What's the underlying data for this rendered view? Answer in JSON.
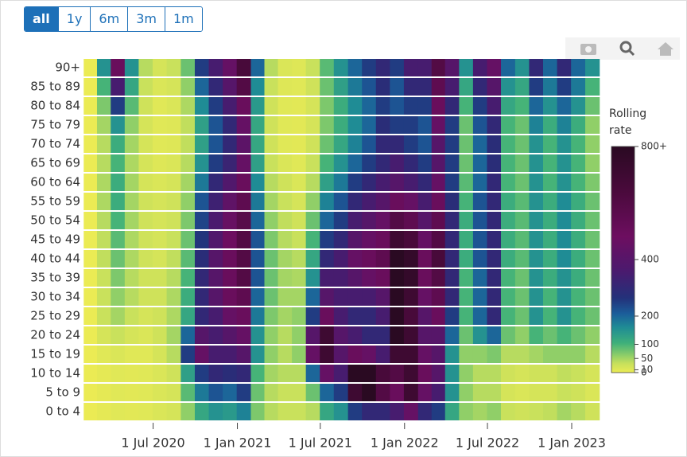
{
  "range_buttons": [
    "all",
    "1y",
    "6m",
    "3m",
    "1m"
  ],
  "chart_data": {
    "type": "heatmap",
    "x": [
      "2020-02-15",
      "2020-03-15",
      "2020-04-15",
      "2020-05-15",
      "2020-06-15",
      "2020-07-15",
      "2020-08-15",
      "2020-09-15",
      "2020-10-15",
      "2020-11-15",
      "2020-12-15",
      "2021-01-15",
      "2021-02-15",
      "2021-03-15",
      "2021-04-15",
      "2021-05-15",
      "2021-06-15",
      "2021-07-15",
      "2021-08-15",
      "2021-09-15",
      "2021-10-15",
      "2021-11-15",
      "2021-12-15",
      "2022-01-15",
      "2022-02-15",
      "2022-03-15",
      "2022-04-15",
      "2022-05-15",
      "2022-06-15",
      "2022-07-15",
      "2022-08-15",
      "2022-09-15",
      "2022-10-15",
      "2022-11-15",
      "2022-12-15",
      "2023-01-15",
      "2023-02-15"
    ],
    "y": [
      "0 to 4",
      "5 to 9",
      "10 to 14",
      "15 to 19",
      "20 to 24",
      "25 to 29",
      "30 to 34",
      "35 to 39",
      "40 to 44",
      "45 to 49",
      "50 to 54",
      "55 to 59",
      "60 to 64",
      "65 to 69",
      "70 to 74",
      "75 to 79",
      "80 to 84",
      "85 to 89",
      "90+"
    ],
    "z": [
      [
        0,
        5,
        10,
        8,
        10,
        15,
        20,
        60,
        120,
        150,
        140,
        170,
        70,
        40,
        30,
        30,
        40,
        120,
        150,
        250,
        300,
        300,
        350,
        450,
        300,
        250,
        120,
        60,
        50,
        60,
        30,
        25,
        30,
        35,
        50,
        40,
        25
      ],
      [
        0,
        5,
        10,
        8,
        10,
        15,
        20,
        90,
        180,
        220,
        200,
        250,
        80,
        40,
        30,
        30,
        80,
        200,
        250,
        700,
        800,
        600,
        500,
        700,
        450,
        350,
        150,
        60,
        40,
        40,
        20,
        15,
        20,
        20,
        30,
        25,
        15
      ],
      [
        0,
        5,
        10,
        8,
        10,
        15,
        25,
        130,
        250,
        300,
        280,
        300,
        100,
        50,
        40,
        40,
        200,
        450,
        350,
        800,
        800,
        650,
        600,
        700,
        500,
        400,
        150,
        60,
        40,
        40,
        25,
        20,
        25,
        25,
        35,
        30,
        20
      ],
      [
        0,
        10,
        15,
        10,
        10,
        20,
        40,
        250,
        450,
        350,
        350,
        400,
        150,
        60,
        40,
        60,
        450,
        700,
        400,
        500,
        450,
        350,
        700,
        700,
        450,
        400,
        150,
        60,
        60,
        70,
        40,
        40,
        50,
        60,
        60,
        60,
        40
      ],
      [
        0,
        20,
        30,
        20,
        15,
        25,
        50,
        200,
        400,
        350,
        400,
        450,
        150,
        60,
        40,
        60,
        400,
        700,
        400,
        350,
        300,
        300,
        800,
        700,
        400,
        400,
        200,
        80,
        150,
        200,
        80,
        60,
        100,
        80,
        100,
        80,
        60
      ],
      [
        0,
        30,
        50,
        30,
        20,
        25,
        45,
        120,
        300,
        350,
        450,
        500,
        180,
        70,
        50,
        60,
        250,
        500,
        350,
        300,
        300,
        350,
        800,
        650,
        400,
        500,
        250,
        100,
        200,
        300,
        100,
        80,
        150,
        100,
        150,
        100,
        80
      ],
      [
        0,
        30,
        60,
        40,
        25,
        25,
        45,
        110,
        300,
        400,
        500,
        550,
        200,
        80,
        50,
        50,
        200,
        400,
        350,
        350,
        350,
        400,
        800,
        700,
        450,
        550,
        300,
        100,
        200,
        300,
        100,
        80,
        150,
        100,
        150,
        100,
        80
      ],
      [
        0,
        30,
        70,
        40,
        25,
        25,
        40,
        100,
        300,
        400,
        500,
        600,
        220,
        80,
        50,
        45,
        150,
        350,
        350,
        400,
        450,
        500,
        800,
        750,
        500,
        600,
        300,
        100,
        200,
        300,
        100,
        80,
        150,
        110,
        150,
        110,
        80
      ],
      [
        0,
        35,
        80,
        45,
        25,
        20,
        35,
        90,
        280,
        400,
        500,
        600,
        220,
        80,
        50,
        40,
        120,
        300,
        350,
        450,
        500,
        550,
        800,
        750,
        500,
        650,
        300,
        110,
        220,
        300,
        110,
        90,
        150,
        110,
        160,
        110,
        80
      ],
      [
        0,
        35,
        90,
        45,
        25,
        20,
        30,
        80,
        260,
        380,
        480,
        600,
        220,
        70,
        40,
        30,
        100,
        250,
        300,
        400,
        450,
        500,
        700,
        650,
        450,
        600,
        300,
        110,
        220,
        300,
        110,
        90,
        150,
        110,
        160,
        110,
        80
      ],
      [
        0,
        40,
        100,
        50,
        25,
        20,
        25,
        70,
        240,
        360,
        460,
        580,
        200,
        60,
        35,
        25,
        80,
        200,
        250,
        350,
        400,
        450,
        600,
        550,
        400,
        550,
        300,
        110,
        220,
        300,
        110,
        90,
        150,
        110,
        160,
        110,
        80
      ],
      [
        0,
        45,
        110,
        50,
        25,
        20,
        25,
        60,
        220,
        330,
        430,
        550,
        180,
        50,
        30,
        20,
        60,
        170,
        220,
        300,
        350,
        400,
        500,
        450,
        350,
        500,
        280,
        100,
        220,
        300,
        110,
        90,
        150,
        110,
        160,
        110,
        80
      ],
      [
        0,
        45,
        110,
        50,
        20,
        15,
        20,
        50,
        180,
        300,
        380,
        500,
        160,
        40,
        25,
        15,
        40,
        130,
        180,
        250,
        300,
        350,
        400,
        350,
        300,
        450,
        250,
        90,
        200,
        300,
        100,
        80,
        150,
        100,
        150,
        100,
        70
      ],
      [
        0,
        40,
        100,
        45,
        20,
        12,
        15,
        40,
        150,
        250,
        320,
        450,
        130,
        30,
        15,
        10,
        30,
        100,
        150,
        200,
        250,
        300,
        350,
        300,
        250,
        400,
        250,
        80,
        200,
        280,
        100,
        80,
        150,
        100,
        150,
        100,
        60
      ],
      [
        0,
        40,
        110,
        50,
        20,
        10,
        12,
        35,
        130,
        220,
        300,
        420,
        120,
        25,
        10,
        8,
        25,
        80,
        120,
        170,
        220,
        300,
        300,
        250,
        220,
        400,
        250,
        80,
        200,
        280,
        100,
        80,
        150,
        100,
        150,
        100,
        60
      ],
      [
        0,
        50,
        150,
        60,
        20,
        10,
        12,
        35,
        130,
        220,
        300,
        450,
        120,
        25,
        10,
        8,
        20,
        70,
        110,
        160,
        200,
        280,
        250,
        250,
        220,
        450,
        250,
        80,
        220,
        300,
        100,
        80,
        170,
        110,
        170,
        110,
        60
      ],
      [
        0,
        70,
        250,
        90,
        25,
        10,
        15,
        45,
        160,
        250,
        350,
        500,
        140,
        25,
        10,
        8,
        20,
        70,
        110,
        160,
        200,
        250,
        220,
        250,
        250,
        500,
        300,
        100,
        250,
        350,
        120,
        100,
        200,
        150,
        200,
        150,
        80
      ],
      [
        0,
        100,
        350,
        120,
        30,
        15,
        20,
        60,
        200,
        300,
        400,
        600,
        160,
        30,
        12,
        10,
        25,
        80,
        130,
        180,
        220,
        280,
        220,
        300,
        300,
        550,
        350,
        120,
        300,
        400,
        150,
        120,
        250,
        180,
        250,
        180,
        100
      ],
      [
        0,
        150,
        500,
        150,
        40,
        20,
        30,
        80,
        250,
        350,
        450,
        650,
        200,
        40,
        15,
        12,
        30,
        90,
        150,
        200,
        250,
        300,
        250,
        350,
        350,
        600,
        400,
        150,
        350,
        450,
        200,
        150,
        300,
        200,
        300,
        200,
        150
      ]
    ],
    "xlim": [
      "2020-01-31",
      "2023-03-01"
    ],
    "xticks": [
      {
        "value": "2020-07-01",
        "label": "1 Jul 2020"
      },
      {
        "value": "2021-01-01",
        "label": "1 Jan 2021"
      },
      {
        "value": "2021-07-01",
        "label": "1 Jul 2021"
      },
      {
        "value": "2022-01-01",
        "label": "1 Jan 2022"
      },
      {
        "value": "2022-07-01",
        "label": "1 Jul 2022"
      },
      {
        "value": "2023-01-01",
        "label": "1 Jan 2023"
      }
    ],
    "colorbar_title": "Rolling rate",
    "zlim": [
      0,
      800
    ],
    "zticks": [
      0,
      10,
      50,
      100,
      200,
      400,
      {
        "value": 800,
        "label": "800+"
      }
    ],
    "colorscale": [
      [
        0,
        "#ebeb54"
      ],
      [
        0.04,
        "#c7e05c"
      ],
      [
        0.08,
        "#88cc6a"
      ],
      [
        0.13,
        "#3fb07a"
      ],
      [
        0.2,
        "#1f8c95"
      ],
      [
        0.26,
        "#1b5e9a"
      ],
      [
        0.33,
        "#23317a"
      ],
      [
        0.45,
        "#4b1a6e"
      ],
      [
        0.6,
        "#6d0e60"
      ],
      [
        0.8,
        "#4a0a3c"
      ],
      [
        1,
        "#2a0a22"
      ]
    ]
  }
}
